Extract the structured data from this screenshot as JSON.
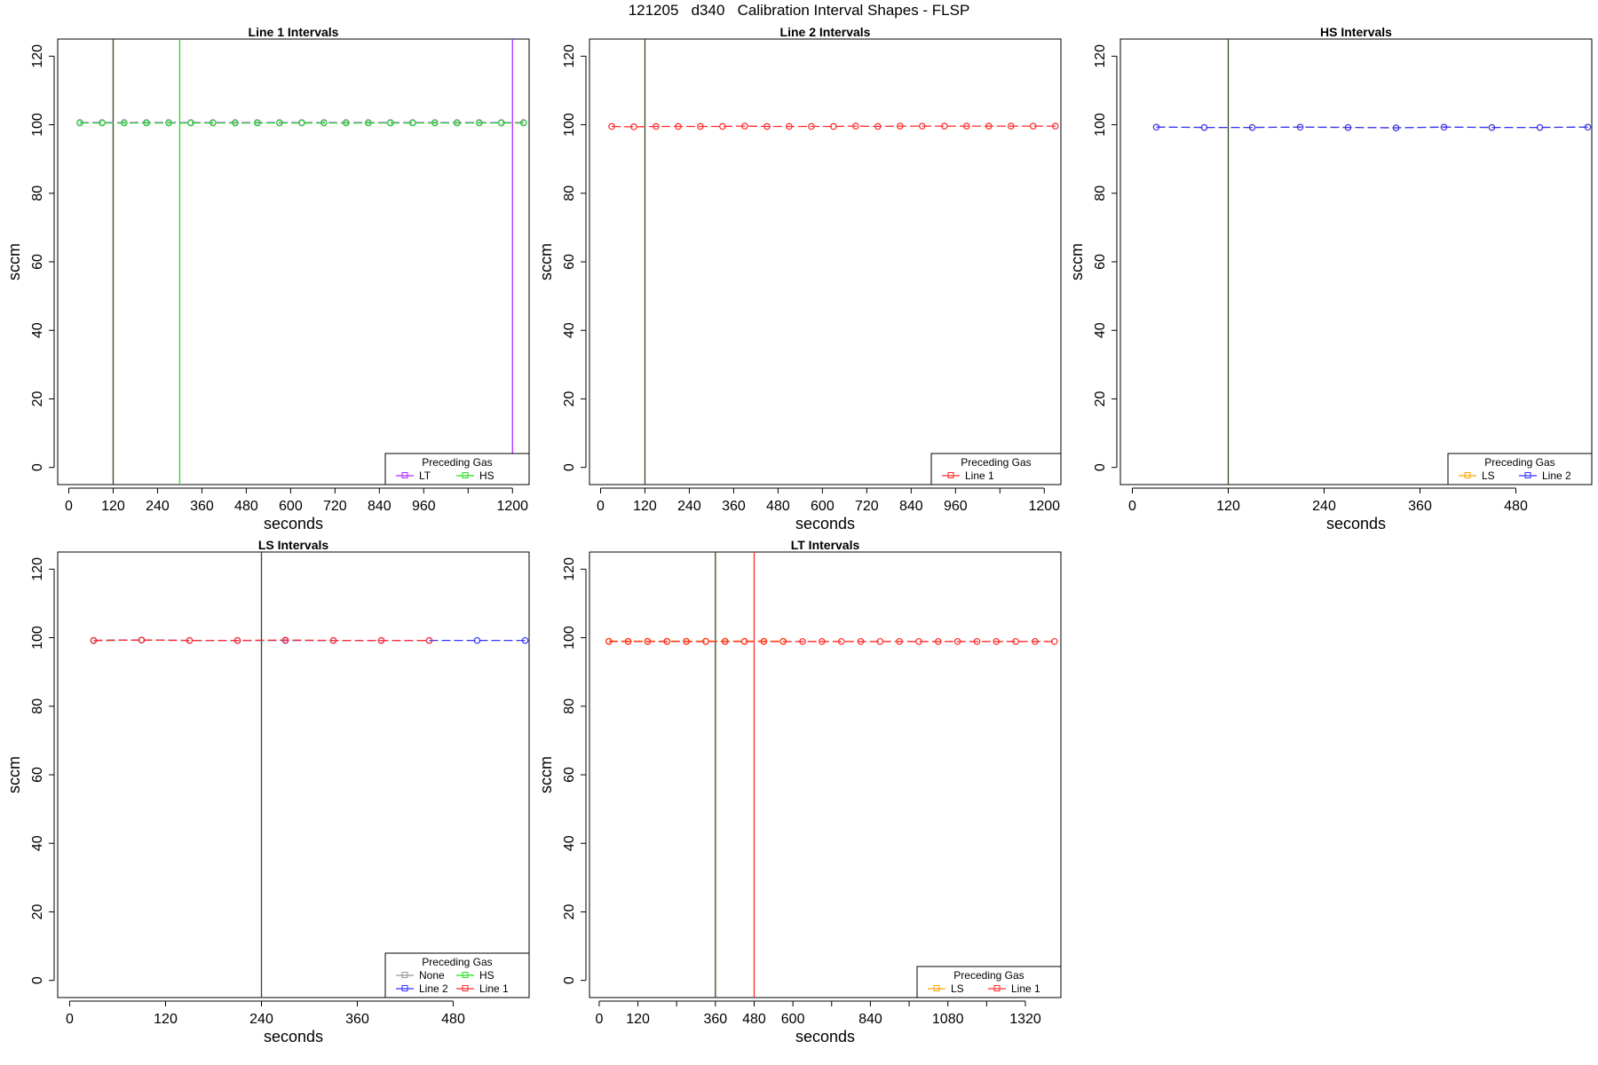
{
  "figure": {
    "title": "121205   d340   Calibration Interval Shapes - FLSP"
  },
  "colors": {
    "LT": "#b026ff",
    "HS": "#22dd22",
    "Line 1": "#ff2a2a",
    "Line 2": "#3333ff",
    "LS": "#ffa500",
    "None": "#999999",
    "dark_vline": "#2f4a1f"
  },
  "chart_data": [
    {
      "type": "line",
      "title": "Line 1 Intervals",
      "xlabel": "seconds",
      "ylabel": "sccm",
      "xlim": [
        -30,
        1245
      ],
      "ylim": [
        -5,
        125
      ],
      "xticks": [
        0,
        120,
        240,
        360,
        480,
        600,
        720,
        840,
        960,
        1080,
        1200
      ],
      "xtick_labels": [
        "0",
        "120",
        "240",
        "360",
        "480",
        "600",
        "720",
        "840",
        "960",
        "",
        "1200"
      ],
      "yticks": [
        0,
        20,
        40,
        60,
        80,
        100,
        120
      ],
      "vlines": [
        {
          "x": 120,
          "color_key": "dark_vline"
        },
        {
          "x": 300,
          "color_key": "HS"
        },
        {
          "x": 1200,
          "color_key": "LT"
        }
      ],
      "legend": {
        "title": "Preceding Gas",
        "entries": [
          "LT",
          "HS"
        ]
      },
      "series": [
        {
          "name": "LT",
          "x": [
            30,
            90,
            150,
            210,
            270,
            330,
            390,
            450,
            510,
            570,
            630,
            690,
            750,
            810,
            870,
            930,
            990,
            1050,
            1110,
            1170,
            1230
          ],
          "y": [
            100.6,
            100.6,
            100.6,
            100.6,
            100.6,
            100.6,
            100.6,
            100.6,
            100.6,
            100.6,
            100.6,
            100.6,
            100.6,
            100.6,
            100.6,
            100.6,
            100.6,
            100.6,
            100.6,
            100.6,
            100.6
          ]
        },
        {
          "name": "HS",
          "x": [
            30,
            90,
            150,
            210,
            270,
            330,
            390,
            450,
            510,
            570,
            630,
            690,
            750,
            810,
            870,
            930,
            990,
            1050,
            1110,
            1170,
            1230
          ],
          "y": [
            100.5,
            100.5,
            100.5,
            100.5,
            100.5,
            100.5,
            100.5,
            100.5,
            100.5,
            100.5,
            100.5,
            100.5,
            100.5,
            100.5,
            100.5,
            100.5,
            100.5,
            100.5,
            100.5,
            100.5,
            100.5
          ]
        }
      ]
    },
    {
      "type": "line",
      "title": "Line 2 Intervals",
      "xlabel": "seconds",
      "ylabel": "sccm",
      "xlim": [
        -30,
        1245
      ],
      "ylim": [
        -5,
        125
      ],
      "xticks": [
        0,
        120,
        240,
        360,
        480,
        600,
        720,
        840,
        960,
        1080,
        1200
      ],
      "xtick_labels": [
        "0",
        "120",
        "240",
        "360",
        "480",
        "600",
        "720",
        "840",
        "960",
        "",
        "1200"
      ],
      "yticks": [
        0,
        20,
        40,
        60,
        80,
        100,
        120
      ],
      "vlines": [
        {
          "x": 120,
          "color_key": "dark_vline"
        }
      ],
      "legend": {
        "title": "Preceding Gas",
        "entries": [
          "Line 1"
        ]
      },
      "series": [
        {
          "name": "Line 1",
          "x": [
            30,
            90,
            150,
            210,
            270,
            330,
            390,
            450,
            510,
            570,
            630,
            690,
            750,
            810,
            870,
            930,
            990,
            1050,
            1110,
            1170,
            1230
          ],
          "y": [
            99.5,
            99.4,
            99.5,
            99.5,
            99.5,
            99.5,
            99.6,
            99.5,
            99.5,
            99.5,
            99.5,
            99.6,
            99.5,
            99.6,
            99.6,
            99.6,
            99.6,
            99.6,
            99.6,
            99.6,
            99.6
          ]
        }
      ]
    },
    {
      "type": "line",
      "title": "HS Intervals",
      "xlabel": "seconds",
      "ylabel": "sccm",
      "xlim": [
        -15,
        575
      ],
      "ylim": [
        -5,
        125
      ],
      "xticks": [
        0,
        120,
        240,
        360,
        480
      ],
      "xtick_labels": [
        "0",
        "120",
        "240",
        "360",
        "480"
      ],
      "yticks": [
        0,
        20,
        40,
        60,
        80,
        100,
        120
      ],
      "vlines": [
        {
          "x": 120,
          "color_key": "dark_vline"
        }
      ],
      "legend": {
        "title": "Preceding Gas",
        "entries": [
          "LS",
          "Line 2"
        ]
      },
      "series": [
        {
          "name": "LS",
          "x": [
            30,
            90,
            150,
            210,
            270,
            330,
            390,
            450,
            510,
            570
          ],
          "y": [
            99.3,
            99.2,
            99.2,
            99.3,
            99.2,
            99.1,
            99.3,
            99.2,
            99.2,
            99.3
          ]
        },
        {
          "name": "Line 2",
          "x": [
            30,
            90,
            150,
            210,
            270,
            330,
            390,
            450,
            510,
            570
          ],
          "y": [
            99.3,
            99.2,
            99.2,
            99.3,
            99.2,
            99.1,
            99.3,
            99.2,
            99.2,
            99.3
          ]
        }
      ]
    },
    {
      "type": "line",
      "title": "LS Intervals",
      "xlabel": "seconds",
      "ylabel": "sccm",
      "xlim": [
        -15,
        575
      ],
      "ylim": [
        -5,
        125
      ],
      "xticks": [
        0,
        120,
        240,
        360,
        480
      ],
      "xtick_labels": [
        "0",
        "120",
        "240",
        "360",
        "480"
      ],
      "yticks": [
        0,
        20,
        40,
        60,
        80,
        100,
        120
      ],
      "vlines": [
        {
          "x": 240,
          "color_key": "dark_vline"
        }
      ],
      "legend": {
        "title": "Preceding Gas",
        "entries": [
          "None",
          "HS",
          "Line 2",
          "Line 1"
        ],
        "columns": 2
      },
      "series": [
        {
          "name": "None",
          "x": [
            30,
            90
          ],
          "y": [
            99.2,
            99.3
          ]
        },
        {
          "name": "HS",
          "x": [
            30,
            90
          ],
          "y": [
            99.2,
            99.3
          ]
        },
        {
          "name": "Line 2",
          "x": [
            30,
            90,
            150,
            210,
            270,
            330,
            390,
            450,
            510,
            570
          ],
          "y": [
            99.2,
            99.3,
            99.2,
            99.2,
            99.2,
            99.2,
            99.2,
            99.2,
            99.2,
            99.2
          ]
        },
        {
          "name": "Line 1",
          "x": [
            30,
            90,
            150,
            210,
            270,
            330,
            390,
            450
          ],
          "y": [
            99.2,
            99.3,
            99.2,
            99.2,
            99.3,
            99.2,
            99.2,
            99.2
          ]
        }
      ]
    },
    {
      "type": "line",
      "title": "LT Intervals",
      "xlabel": "seconds",
      "ylabel": "sccm",
      "xlim": [
        -30,
        1430
      ],
      "ylim": [
        -5,
        125
      ],
      "xticks": [
        0,
        120,
        240,
        360,
        480,
        600,
        720,
        840,
        960,
        1080,
        1200,
        1320
      ],
      "xtick_labels": [
        "0",
        "120",
        "",
        "360",
        "480",
        "600",
        "",
        "840",
        "",
        "1080",
        "",
        "1320"
      ],
      "yticks": [
        0,
        20,
        40,
        60,
        80,
        100,
        120
      ],
      "vlines": [
        {
          "x": 360,
          "color_key": "dark_vline"
        },
        {
          "x": 480,
          "color_key": "Line 1"
        }
      ],
      "legend": {
        "title": "Preceding Gas",
        "entries": [
          "LS",
          "Line 1"
        ]
      },
      "series": [
        {
          "name": "LS",
          "x": [
            30,
            90,
            150,
            210,
            270,
            330,
            390,
            450,
            510,
            570
          ],
          "y": [
            99.0,
            99.0,
            99.0,
            99.0,
            99.0,
            99.0,
            99.0,
            99.0,
            99.0,
            99.0
          ]
        },
        {
          "name": "Line 1",
          "x": [
            30,
            90,
            150,
            210,
            270,
            330,
            390,
            450,
            510,
            570,
            630,
            690,
            750,
            810,
            870,
            930,
            990,
            1050,
            1110,
            1170,
            1230,
            1290,
            1350,
            1410
          ],
          "y": [
            98.9,
            98.9,
            98.9,
            98.9,
            98.9,
            98.9,
            98.9,
            98.9,
            98.9,
            98.9,
            98.9,
            98.9,
            98.9,
            98.9,
            98.9,
            98.9,
            98.9,
            98.9,
            98.9,
            98.9,
            98.9,
            98.9,
            98.9,
            98.9
          ]
        }
      ]
    }
  ]
}
